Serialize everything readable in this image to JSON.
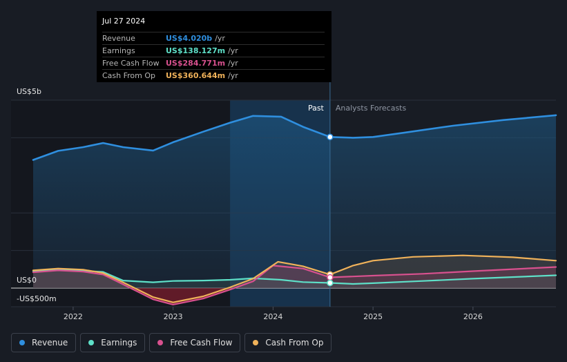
{
  "tooltip": {
    "date": "Jul 27 2024",
    "rows": [
      {
        "label": "Revenue",
        "value": "US$4.020b",
        "unit": "/yr",
        "color": "#2f8fdf"
      },
      {
        "label": "Earnings",
        "value": "US$138.127m",
        "unit": "/yr",
        "color": "#5ee0c8"
      },
      {
        "label": "Free Cash Flow",
        "value": "US$284.771m",
        "unit": "/yr",
        "color": "#d9518f"
      },
      {
        "label": "Cash From Op",
        "value": "US$360.644m",
        "unit": "/yr",
        "color": "#f0b25a"
      }
    ]
  },
  "legend": [
    {
      "label": "Revenue",
      "color": "#2f8fdf"
    },
    {
      "label": "Earnings",
      "color": "#5ee0c8"
    },
    {
      "label": "Free Cash Flow",
      "color": "#d9518f"
    },
    {
      "label": "Cash From Op",
      "color": "#f0b25a"
    }
  ],
  "chart_data": {
    "type": "area",
    "y_unit": "US$ millions",
    "ylim": [
      -500,
      5000
    ],
    "y_tick_labels": [
      {
        "value": 5000,
        "label": "US$5b"
      },
      {
        "value": 0,
        "label": "US$0"
      },
      {
        "value": -500,
        "label": "-US$500m"
      }
    ],
    "x_range": [
      2021.6,
      2026.83
    ],
    "x_ticks": [
      2022,
      2023,
      2024,
      2025,
      2026
    ],
    "past_label": "Past",
    "forecast_label": "Analysts Forecasts",
    "past_forecast_boundary": 2024.57,
    "highlight_start": 2023.57,
    "series": [
      {
        "name": "Revenue",
        "color": "#2f8fdf",
        "points": [
          [
            2021.6,
            3410
          ],
          [
            2021.85,
            3650
          ],
          [
            2022.1,
            3750
          ],
          [
            2022.3,
            3860
          ],
          [
            2022.5,
            3750
          ],
          [
            2022.8,
            3660
          ],
          [
            2023.0,
            3880
          ],
          [
            2023.3,
            4160
          ],
          [
            2023.57,
            4400
          ],
          [
            2023.8,
            4580
          ],
          [
            2024.08,
            4560
          ],
          [
            2024.3,
            4290
          ],
          [
            2024.57,
            4020
          ],
          [
            2024.8,
            4000
          ],
          [
            2025.0,
            4020
          ],
          [
            2025.3,
            4130
          ],
          [
            2025.8,
            4320
          ],
          [
            2026.3,
            4470
          ],
          [
            2026.83,
            4600
          ]
        ]
      },
      {
        "name": "Earnings",
        "color": "#5ee0c8",
        "points": [
          [
            2021.6,
            450
          ],
          [
            2021.85,
            500
          ],
          [
            2022.1,
            460
          ],
          [
            2022.3,
            430
          ],
          [
            2022.5,
            200
          ],
          [
            2022.8,
            155
          ],
          [
            2023.0,
            190
          ],
          [
            2023.3,
            200
          ],
          [
            2023.57,
            220
          ],
          [
            2023.8,
            260
          ],
          [
            2024.08,
            220
          ],
          [
            2024.3,
            160
          ],
          [
            2024.57,
            138
          ],
          [
            2024.8,
            110
          ],
          [
            2025.0,
            130
          ],
          [
            2025.5,
            190
          ],
          [
            2026.0,
            250
          ],
          [
            2026.83,
            340
          ]
        ]
      },
      {
        "name": "Free Cash Flow",
        "color": "#d9518f",
        "points": [
          [
            2021.6,
            420
          ],
          [
            2021.85,
            470
          ],
          [
            2022.1,
            440
          ],
          [
            2022.3,
            360
          ],
          [
            2022.5,
            100
          ],
          [
            2022.8,
            -300
          ],
          [
            2023.0,
            -440
          ],
          [
            2023.3,
            -280
          ],
          [
            2023.57,
            -40
          ],
          [
            2023.8,
            180
          ],
          [
            2024.0,
            600
          ],
          [
            2024.3,
            520
          ],
          [
            2024.57,
            285
          ],
          [
            2025.0,
            330
          ],
          [
            2025.5,
            380
          ],
          [
            2026.0,
            450
          ],
          [
            2026.83,
            560
          ]
        ]
      },
      {
        "name": "Cash From Op",
        "color": "#f0b25a",
        "points": [
          [
            2021.6,
            470
          ],
          [
            2021.85,
            520
          ],
          [
            2022.1,
            490
          ],
          [
            2022.3,
            400
          ],
          [
            2022.5,
            150
          ],
          [
            2022.8,
            -240
          ],
          [
            2023.0,
            -380
          ],
          [
            2023.3,
            -220
          ],
          [
            2023.57,
            20
          ],
          [
            2023.8,
            250
          ],
          [
            2024.05,
            700
          ],
          [
            2024.3,
            580
          ],
          [
            2024.57,
            360
          ],
          [
            2024.8,
            600
          ],
          [
            2025.0,
            730
          ],
          [
            2025.4,
            830
          ],
          [
            2025.9,
            870
          ],
          [
            2026.4,
            820
          ],
          [
            2026.83,
            730
          ]
        ]
      }
    ]
  }
}
